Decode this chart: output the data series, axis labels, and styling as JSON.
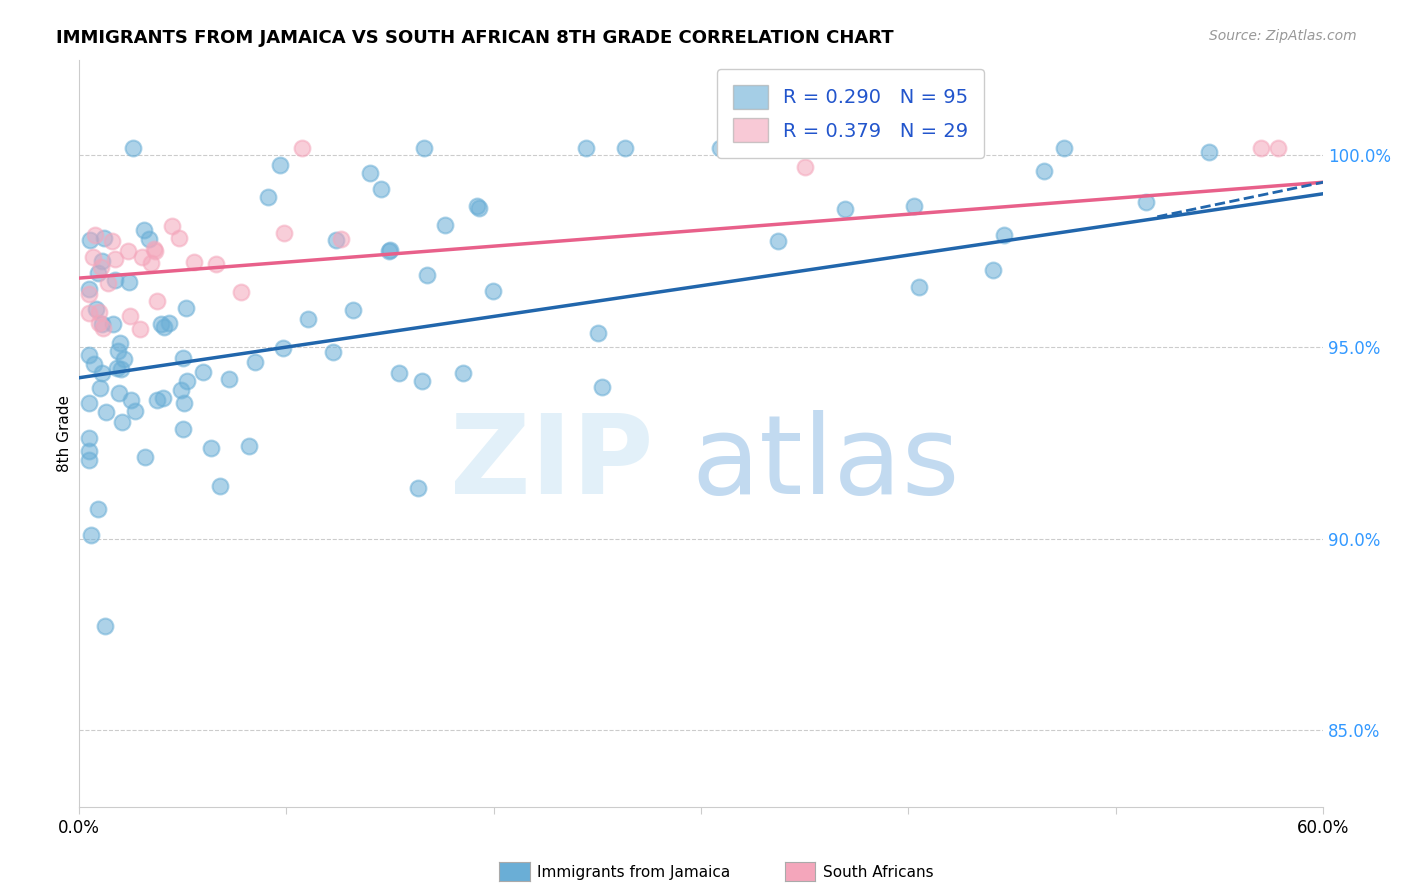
{
  "title": "IMMIGRANTS FROM JAMAICA VS SOUTH AFRICAN 8TH GRADE CORRELATION CHART",
  "source": "Source: ZipAtlas.com",
  "ylabel": "8th Grade",
  "ytick_labels": [
    "85.0%",
    "90.0%",
    "95.0%",
    "100.0%"
  ],
  "ytick_values": [
    0.85,
    0.9,
    0.95,
    1.0
  ],
  "xmin": 0.0,
  "xmax": 0.6,
  "ymin": 0.83,
  "ymax": 1.025,
  "legend1_label": "R = 0.290   N = 95",
  "legend2_label": "R = 0.379   N = 29",
  "blue_color": "#6aaed6",
  "pink_color": "#f4a6bb",
  "blue_line_color": "#2166ac",
  "pink_line_color": "#e8608a",
  "blue_line_y0": 0.942,
  "blue_line_y1": 0.99,
  "pink_line_y0": 0.968,
  "pink_line_y1": 0.993
}
